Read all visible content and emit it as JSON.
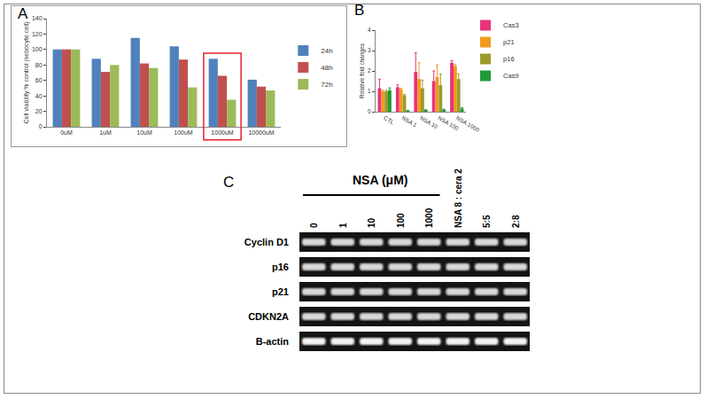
{
  "chart_data": [
    {
      "type": "bar",
      "label": "A",
      "y_label": "Cell viability % control (sebocyte cell)",
      "categories": [
        "0uM",
        "1uM",
        "10uM",
        "100uM",
        "1000uM",
        "10000uM"
      ],
      "series": [
        {
          "name": "24h",
          "color": "#4f81bd",
          "values": [
            100,
            88,
            115,
            104,
            88,
            61
          ]
        },
        {
          "name": "48h",
          "color": "#c0504d",
          "values": [
            100,
            71,
            82,
            87,
            66,
            52
          ]
        },
        {
          "name": "72h",
          "color": "#9bbb59",
          "values": [
            100,
            80,
            76,
            51,
            35,
            47
          ]
        }
      ],
      "ylim": [
        0,
        140
      ],
      "yticks": [
        0,
        20,
        40,
        60,
        80,
        100,
        120,
        140
      ],
      "grid": false,
      "legend": "right",
      "highlight": {
        "category": "1000uM",
        "color": "#e8202a"
      }
    },
    {
      "type": "bar",
      "label": "B",
      "y_label": "Relative fold changes",
      "categories": [
        "CTL",
        "NSA 1",
        "NSA 10",
        "NSA 100",
        "NSA 1000"
      ],
      "series": [
        {
          "name": "Cas3",
          "color": "#e8327c",
          "values": [
            1.15,
            1.2,
            1.95,
            1.5,
            2.4
          ],
          "errors": [
            0.45,
            0.12,
            0.95,
            0.5,
            0.1
          ]
        },
        {
          "name": "p21",
          "color": "#f39a1e",
          "values": [
            1.0,
            1.1,
            1.6,
            1.7,
            2.25
          ],
          "errors": [
            0.05,
            0.05,
            0.8,
            0.6,
            0.08
          ]
        },
        {
          "name": "p16",
          "color": "#9a9a2c",
          "values": [
            1.0,
            0.8,
            1.15,
            1.3,
            1.6
          ],
          "errors": [
            0.05,
            0.05,
            0.4,
            0.55,
            0.25
          ]
        },
        {
          "name": "Cas9",
          "color": "#1e9a3a",
          "values": [
            1.05,
            0.05,
            0.08,
            0.1,
            0.15
          ],
          "errors": [
            0.12,
            0.02,
            0.02,
            0.02,
            0.05
          ]
        }
      ],
      "ylim": [
        0,
        4
      ],
      "yticks": [
        0,
        1,
        2,
        3,
        4
      ],
      "grid": false,
      "legend": "right"
    }
  ],
  "gel": {
    "label": "C",
    "group_label": "NSA (μM)",
    "lanes": [
      "0",
      "1",
      "10",
      "100",
      "1000",
      "NSA 8 : cera 2",
      "5:5",
      "2:8"
    ],
    "group_lanes": 5,
    "rows": [
      "Cyclin D1",
      "p16",
      "p21",
      "CDKN2A",
      "B-actin"
    ]
  }
}
